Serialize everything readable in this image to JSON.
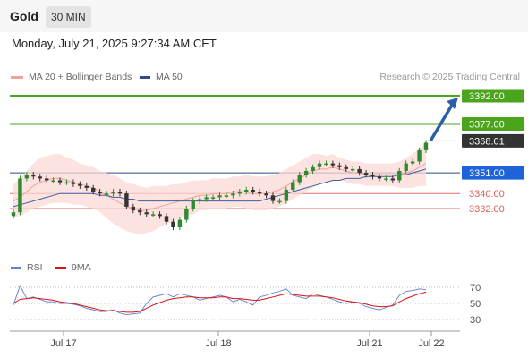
{
  "header": {
    "instrument": "Gold",
    "timeframe": "30 MIN"
  },
  "datetime": "Monday, July 21, 2025 9:27:34 AM CET",
  "legend": {
    "ma20": {
      "label": "MA 20 + Bollinger Bands",
      "color": "#f4a09a"
    },
    "ma50": {
      "label": "MA 50",
      "color": "#3a5fa0"
    },
    "credit": "Research © 2025 Trading Central"
  },
  "rsi_legend": {
    "rsi": {
      "label": "RSI",
      "color": "#5b7fd6"
    },
    "ma9": {
      "label": "9MA",
      "color": "#dd1111"
    }
  },
  "colors": {
    "resistance": "#4aa51c",
    "support_key": "#2c4a8c",
    "support": "#e46a6a",
    "up": "#2f8a2f",
    "down": "#333333",
    "current": "#333333",
    "arrow": "#2d5ea8"
  },
  "chart_data": [
    {
      "type": "line",
      "title": "Gold 30 MIN",
      "price_range": [
        3310,
        3400
      ],
      "x_ticks": [
        "Jul 17",
        "Jul 18",
        "Jul 21",
        "Jul 22"
      ],
      "levels": [
        {
          "value": 3392.0,
          "label": "3392.00",
          "kind": "resistance"
        },
        {
          "value": 3377.0,
          "label": "3377.00",
          "kind": "resistance"
        },
        {
          "value": 3368.01,
          "label": "3368.01",
          "kind": "current"
        },
        {
          "value": 3351.0,
          "label": "3351.00",
          "kind": "pivot"
        },
        {
          "value": 3340.0,
          "label": "3340.00",
          "kind": "support"
        },
        {
          "value": 3332.0,
          "label": "3332.00",
          "kind": "support"
        }
      ],
      "target_arrow": {
        "from": 3368,
        "to": 3392
      },
      "series": [
        {
          "name": "MA 20 + Bollinger Bands",
          "values": [
            3336,
            3338,
            3341,
            3344,
            3346,
            3347,
            3348,
            3348,
            3347,
            3346,
            3345,
            3344,
            3343,
            3341,
            3339,
            3337,
            3335,
            3333,
            3332,
            3331,
            3331,
            3332,
            3333,
            3334,
            3335,
            3336,
            3337,
            3338,
            3339,
            3339,
            3340,
            3340,
            3340,
            3341,
            3341,
            3341,
            3340,
            3340,
            3340,
            3341,
            3342,
            3344,
            3346,
            3348,
            3350,
            3352,
            3353,
            3353,
            3354,
            3353,
            3352,
            3351,
            3351,
            3350,
            3350,
            3350,
            3350,
            3350,
            3350,
            3351,
            3352,
            3354,
            3356
          ]
        },
        {
          "name": "MA 50",
          "values": [
            3333,
            3334,
            3335,
            3336,
            3337,
            3338,
            3339,
            3340,
            3340,
            3340,
            3340,
            3340,
            3340,
            3339,
            3339,
            3338,
            3338,
            3337,
            3337,
            3336,
            3336,
            3336,
            3336,
            3336,
            3336,
            3336,
            3336,
            3336,
            3336,
            3336,
            3336,
            3336,
            3336,
            3336,
            3336,
            3336,
            3336,
            3336,
            3337,
            3338,
            3339,
            3340,
            3341,
            3342,
            3343,
            3344,
            3345,
            3346,
            3347,
            3347,
            3348,
            3348,
            3348,
            3349,
            3349,
            3349,
            3349,
            3349,
            3350,
            3350,
            3351,
            3352,
            3353
          ]
        },
        {
          "name": "Price",
          "values": [
            3330,
            3348,
            3350,
            3349,
            3348,
            3347,
            3347,
            3346,
            3346,
            3345,
            3344,
            3343,
            3341,
            3340,
            3340,
            3341,
            3340,
            3333,
            3331,
            3330,
            3329,
            3329,
            3328,
            3325,
            3322,
            3326,
            3332,
            3336,
            3337,
            3338,
            3338,
            3339,
            3339,
            3340,
            3341,
            3342,
            3341,
            3340,
            3339,
            3336,
            3336,
            3342,
            3346,
            3350,
            3352,
            3354,
            3356,
            3356,
            3355,
            3354,
            3353,
            3353,
            3351,
            3350,
            3349,
            3348,
            3348,
            3347,
            3352,
            3356,
            3357,
            3363,
            3367
          ]
        }
      ],
      "band_width": [
        9,
        10,
        11,
        12,
        13,
        13,
        13,
        13,
        12,
        12,
        11,
        11,
        11,
        11,
        12,
        13,
        13,
        13,
        13,
        13,
        12,
        12,
        11,
        10,
        10,
        9,
        9,
        9,
        8,
        8,
        8,
        8,
        8,
        8,
        8,
        9,
        9,
        9,
        9,
        9,
        9,
        9,
        9,
        9,
        9,
        9,
        8,
        7,
        7,
        6,
        6,
        6,
        6,
        6,
        6,
        6,
        6,
        6,
        7,
        8,
        9,
        10,
        12
      ]
    },
    {
      "type": "line",
      "title": "RSI",
      "ylim": [
        20,
        80
      ],
      "y_ticks": [
        70,
        50,
        30
      ],
      "series": [
        {
          "name": "RSI",
          "values": [
            48,
            72,
            56,
            58,
            55,
            52,
            52,
            50,
            50,
            49,
            47,
            44,
            42,
            40,
            40,
            42,
            38,
            36,
            37,
            38,
            50,
            58,
            60,
            62,
            58,
            62,
            60,
            58,
            54,
            56,
            58,
            60,
            58,
            52,
            55,
            52,
            48,
            58,
            60,
            63,
            65,
            68,
            60,
            58,
            56,
            62,
            60,
            58,
            55,
            52,
            50,
            52,
            50,
            46,
            44,
            42,
            45,
            48,
            60,
            65,
            66,
            68,
            67
          ]
        },
        {
          "name": "9MA",
          "values": [
            50,
            55,
            56,
            57,
            56,
            55,
            54,
            52,
            51,
            50,
            48,
            46,
            44,
            42,
            41,
            41,
            40,
            39,
            39,
            40,
            44,
            48,
            51,
            54,
            56,
            57,
            58,
            58,
            57,
            57,
            57,
            58,
            58,
            56,
            56,
            55,
            54,
            54,
            56,
            58,
            60,
            62,
            61,
            60,
            59,
            59,
            59,
            58,
            57,
            55,
            53,
            52,
            51,
            49,
            47,
            46,
            46,
            47,
            52,
            56,
            59,
            62,
            64
          ]
        }
      ]
    }
  ]
}
